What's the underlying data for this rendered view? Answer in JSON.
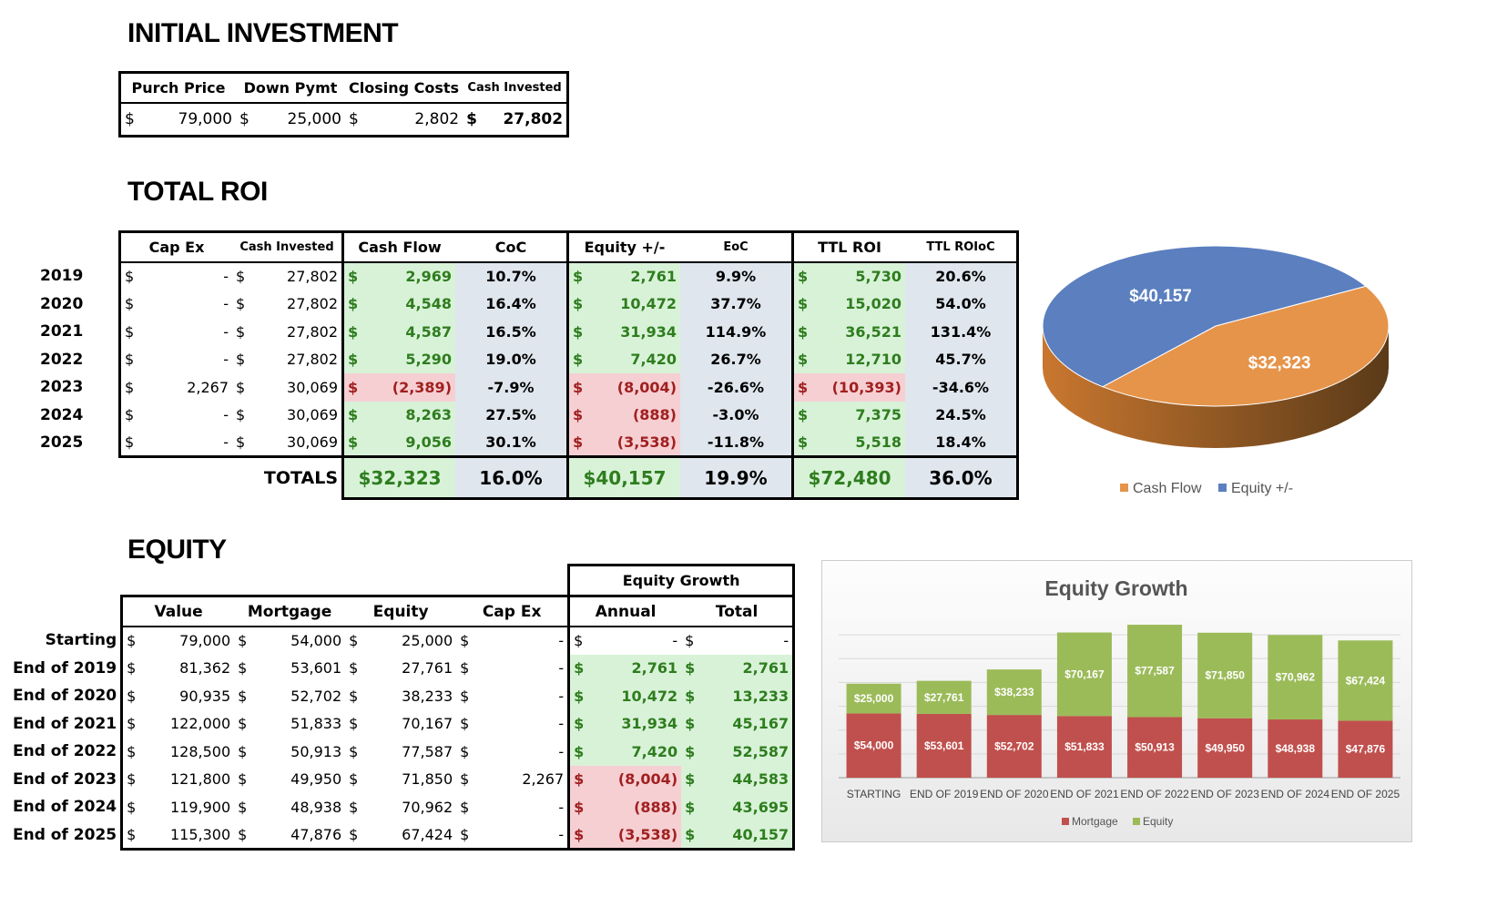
{
  "headings": {
    "initial": "INITIAL INVESTMENT",
    "roi": "TOTAL ROI",
    "equity": "EQUITY"
  },
  "initial": {
    "headers": [
      "Purch Price",
      "Down Pymt",
      "Closing Costs",
      "Cash Invested"
    ],
    "values": [
      "79,000",
      "25,000",
      "2,802",
      "27,802"
    ],
    "currency": "$"
  },
  "roi": {
    "headers": [
      "Cap Ex",
      "Cash Invested",
      "Cash Flow",
      "CoC",
      "Equity +/-",
      "EoC",
      "TTL ROI",
      "TTL ROIoC"
    ],
    "rows": [
      {
        "year": "2019",
        "capex": "-",
        "cash_inv": "27,802",
        "cf": "2,969",
        "coc": "10.7%",
        "eq": "2,761",
        "eoc": "9.9%",
        "ttl": "5,730",
        "ttlc": "20.6%",
        "cf_neg": false,
        "eq_neg": false,
        "ttl_neg": false
      },
      {
        "year": "2020",
        "capex": "-",
        "cash_inv": "27,802",
        "cf": "4,548",
        "coc": "16.4%",
        "eq": "10,472",
        "eoc": "37.7%",
        "ttl": "15,020",
        "ttlc": "54.0%",
        "cf_neg": false,
        "eq_neg": false,
        "ttl_neg": false
      },
      {
        "year": "2021",
        "capex": "-",
        "cash_inv": "27,802",
        "cf": "4,587",
        "coc": "16.5%",
        "eq": "31,934",
        "eoc": "114.9%",
        "ttl": "36,521",
        "ttlc": "131.4%",
        "cf_neg": false,
        "eq_neg": false,
        "ttl_neg": false
      },
      {
        "year": "2022",
        "capex": "-",
        "cash_inv": "27,802",
        "cf": "5,290",
        "coc": "19.0%",
        "eq": "7,420",
        "eoc": "26.7%",
        "ttl": "12,710",
        "ttlc": "45.7%",
        "cf_neg": false,
        "eq_neg": false,
        "ttl_neg": false
      },
      {
        "year": "2023",
        "capex": "2,267",
        "cash_inv": "30,069",
        "cf": "(2,389)",
        "coc": "-7.9%",
        "eq": "(8,004)",
        "eoc": "-26.6%",
        "ttl": "(10,393)",
        "ttlc": "-34.6%",
        "cf_neg": true,
        "eq_neg": true,
        "ttl_neg": true
      },
      {
        "year": "2024",
        "capex": "-",
        "cash_inv": "30,069",
        "cf": "8,263",
        "coc": "27.5%",
        "eq": "(888)",
        "eoc": "-3.0%",
        "ttl": "7,375",
        "ttlc": "24.5%",
        "cf_neg": false,
        "eq_neg": true,
        "ttl_neg": false
      },
      {
        "year": "2025",
        "capex": "-",
        "cash_inv": "30,069",
        "cf": "9,056",
        "coc": "30.1%",
        "eq": "(3,538)",
        "eoc": "-11.8%",
        "ttl": "5,518",
        "ttlc": "18.4%",
        "cf_neg": false,
        "eq_neg": true,
        "ttl_neg": false
      }
    ],
    "totals": {
      "label": "TOTALS",
      "cf": "$32,323",
      "coc": "16.0%",
      "eq": "$40,157",
      "eoc": "19.9%",
      "ttl": "$72,480",
      "ttlc": "36.0%"
    }
  },
  "equity": {
    "group_header": "Equity Growth",
    "headers": [
      "Value",
      "Mortgage",
      "Equity",
      "Cap Ex",
      "Annual",
      "Total"
    ],
    "rows": [
      {
        "label": "Starting",
        "value": "79,000",
        "mortgage": "54,000",
        "equity": "25,000",
        "capex": "-",
        "annual": "-",
        "total": "-",
        "annual_style": "none",
        "total_style": "none"
      },
      {
        "label": "End of 2019",
        "value": "81,362",
        "mortgage": "53,601",
        "equity": "27,761",
        "capex": "-",
        "annual": "2,761",
        "total": "2,761",
        "annual_style": "g",
        "total_style": "g"
      },
      {
        "label": "End of 2020",
        "value": "90,935",
        "mortgage": "52,702",
        "equity": "38,233",
        "capex": "-",
        "annual": "10,472",
        "total": "13,233",
        "annual_style": "g",
        "total_style": "g"
      },
      {
        "label": "End of 2021",
        "value": "122,000",
        "mortgage": "51,833",
        "equity": "70,167",
        "capex": "-",
        "annual": "31,934",
        "total": "45,167",
        "annual_style": "g",
        "total_style": "g"
      },
      {
        "label": "End of 2022",
        "value": "128,500",
        "mortgage": "50,913",
        "equity": "77,587",
        "capex": "-",
        "annual": "7,420",
        "total": "52,587",
        "annual_style": "g",
        "total_style": "g"
      },
      {
        "label": "End of 2023",
        "value": "121,800",
        "mortgage": "49,950",
        "equity": "71,850",
        "capex": "2,267",
        "annual": "(8,004)",
        "total": "44,583",
        "annual_style": "r",
        "total_style": "g"
      },
      {
        "label": "End of 2024",
        "value": "119,900",
        "mortgage": "48,938",
        "equity": "70,962",
        "capex": "-",
        "annual": "(888)",
        "total": "43,695",
        "annual_style": "r",
        "total_style": "g"
      },
      {
        "label": "End of 2025",
        "value": "115,300",
        "mortgage": "47,876",
        "equity": "67,424",
        "capex": "-",
        "annual": "(3,538)",
        "total": "40,157",
        "annual_style": "r",
        "total_style": "g"
      }
    ]
  },
  "chart_data": [
    {
      "type": "pie",
      "title": "",
      "labels": [
        "Cash Flow",
        "Equity +/-"
      ],
      "values": [
        32323,
        40157
      ],
      "data_labels": [
        "$32,323",
        "$40,157"
      ],
      "colors": [
        "#e6944a",
        "#5b7fbf"
      ],
      "legend": "bottom"
    },
    {
      "type": "bar",
      "stacked": true,
      "title": "Equity Growth",
      "categories": [
        "STARTING",
        "END OF 2019",
        "END OF 2020",
        "END OF 2021",
        "END OF 2022",
        "END OF 2023",
        "END OF 2024",
        "END OF 2025"
      ],
      "series": [
        {
          "name": "Mortgage",
          "values": [
            54000,
            53601,
            52702,
            51833,
            50913,
            49950,
            48938,
            47876
          ],
          "labels": [
            "$54,000",
            "$53,601",
            "$52,702",
            "$51,833",
            "$50,913",
            "$49,950",
            "$48,938",
            "$47,876"
          ],
          "color": "#c0504d"
        },
        {
          "name": "Equity",
          "values": [
            25000,
            27761,
            38233,
            70167,
            77587,
            71850,
            70962,
            67424
          ],
          "labels": [
            "$25,000",
            "$27,761",
            "$38,233",
            "$70,167",
            "$77,587",
            "$71,850",
            "$70,962",
            "$67,424"
          ],
          "color": "#9bbb59"
        }
      ],
      "ylim": [
        0,
        140000
      ],
      "legend": "bottom"
    }
  ]
}
